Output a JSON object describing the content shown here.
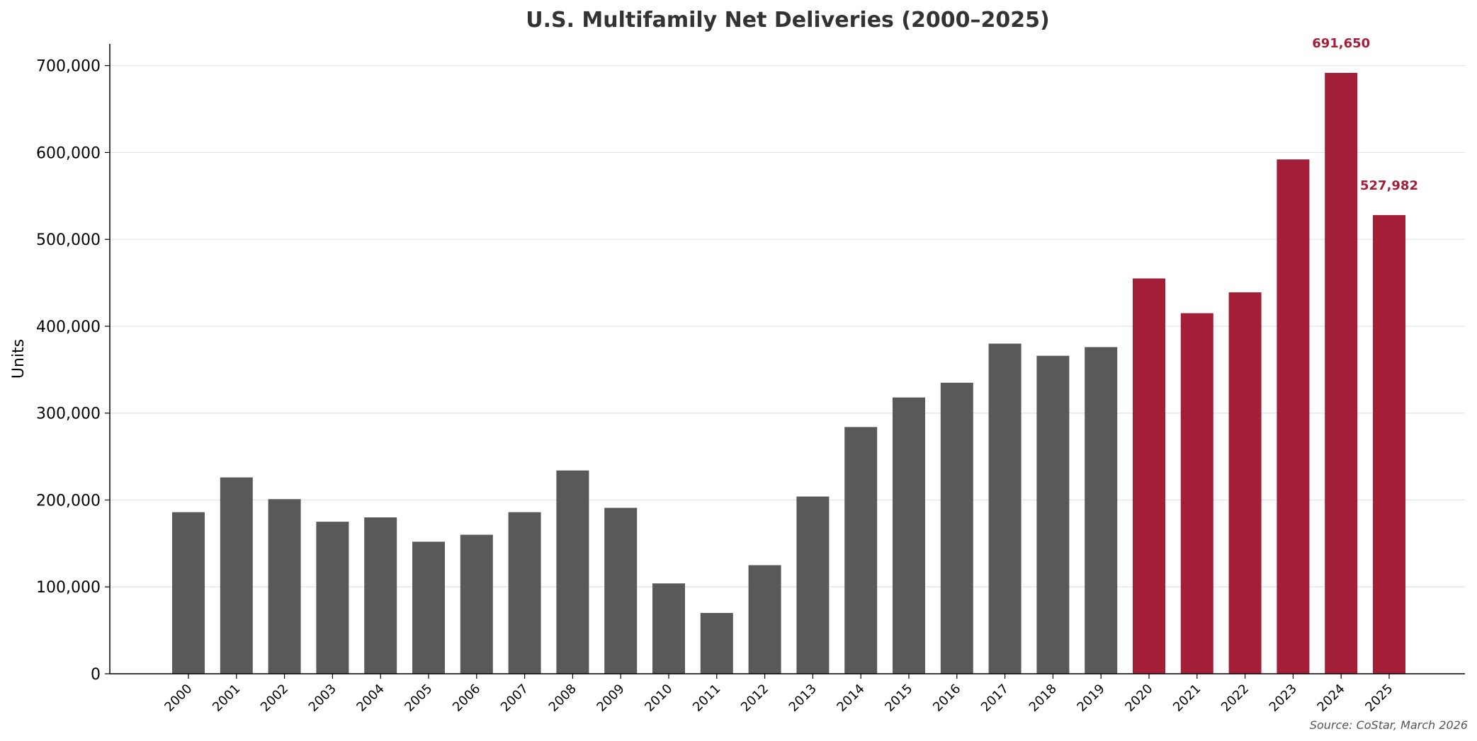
{
  "chart_data": {
    "type": "bar",
    "title": "U.S. Multifamily Net Deliveries (2000–2025)",
    "xlabel": "",
    "ylabel": "Units",
    "ylim": [
      0,
      725000
    ],
    "yticks": [
      0,
      100000,
      200000,
      300000,
      400000,
      500000,
      600000,
      700000
    ],
    "ytick_labels": [
      "0",
      "100,000",
      "200,000",
      "300,000",
      "400,000",
      "500,000",
      "600,000",
      "700,000"
    ],
    "grid": "horizontal",
    "categories": [
      "2000",
      "2001",
      "2002",
      "2003",
      "2004",
      "2005",
      "2006",
      "2007",
      "2008",
      "2009",
      "2010",
      "2011",
      "2012",
      "2013",
      "2014",
      "2015",
      "2016",
      "2017",
      "2018",
      "2019",
      "2020",
      "2021",
      "2022",
      "2023",
      "2024",
      "2025"
    ],
    "values": [
      186000,
      226000,
      201000,
      175000,
      180000,
      152000,
      160000,
      186000,
      234000,
      191000,
      104000,
      70000,
      125000,
      204000,
      284000,
      318000,
      335000,
      380000,
      366000,
      376000,
      455000,
      415000,
      439000,
      592000,
      691650,
      527982
    ],
    "colors": {
      "pre_2020": "#595959",
      "from_2020": "#a31f37",
      "label": "#a31f37"
    },
    "highlight_from_index": 20,
    "data_labels": [
      {
        "category": "2024",
        "text": "691,650"
      },
      {
        "category": "2025",
        "text": "527,982"
      }
    ],
    "source": "Source: CoStar, March 2026"
  }
}
